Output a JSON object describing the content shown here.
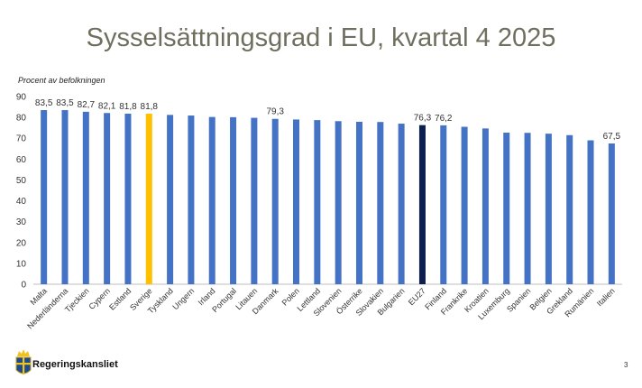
{
  "slide": {
    "title": "Sysselsättningsgrad i EU, kvartal 4 2025",
    "ylabel": "Procent av befolkningen",
    "logo_text": "Regeringskansliet",
    "page_number": "3"
  },
  "chart_data": {
    "type": "bar",
    "title": "Sysselsättningsgrad i EU, kvartal 4 2025",
    "xlabel": "",
    "ylabel": "Procent av befolkningen",
    "ylim": [
      0,
      90
    ],
    "yticks": [
      0,
      10,
      20,
      30,
      40,
      50,
      60,
      70,
      80,
      90
    ],
    "grid": false,
    "categories": [
      "Malta",
      "Nederländerna",
      "Tjeckien",
      "Cypern",
      "Estland",
      "Sverige",
      "Tyskland",
      "Ungern",
      "Irland",
      "Portugal",
      "Litauen",
      "Danmark",
      "Polen",
      "Lettland",
      "Slovenien",
      "Österrike",
      "Slovakien",
      "Bulgarien",
      "EU27",
      "Finland",
      "Frankrike",
      "Kroatien",
      "Luxemburg",
      "Spanien",
      "Belgien",
      "Grekland",
      "Rumänien",
      "Italien"
    ],
    "values": [
      83.5,
      83.5,
      82.7,
      82.1,
      81.8,
      81.8,
      81.2,
      80.9,
      80.2,
      80.1,
      79.8,
      79.3,
      79.0,
      78.7,
      78.2,
      77.9,
      77.8,
      77.0,
      76.3,
      76.2,
      75.5,
      74.7,
      72.7,
      72.6,
      72.2,
      71.5,
      69.0,
      67.5
    ],
    "labels": [
      "83,5",
      "83,5",
      "82,7",
      "82,1",
      "81,8",
      "81,8",
      "",
      "",
      "",
      "",
      "",
      "79,3",
      "",
      "",
      "",
      "",
      "",
      "",
      "76,3",
      "76,2",
      "",
      "",
      "",
      "",
      "",
      "",
      "",
      "67,5"
    ],
    "colors": {
      "default": "#4472c4",
      "Sverige": "#ffc000",
      "EU27": "#0d1f4f",
      "axis": "#bfbfbf",
      "text": "#333333"
    }
  }
}
